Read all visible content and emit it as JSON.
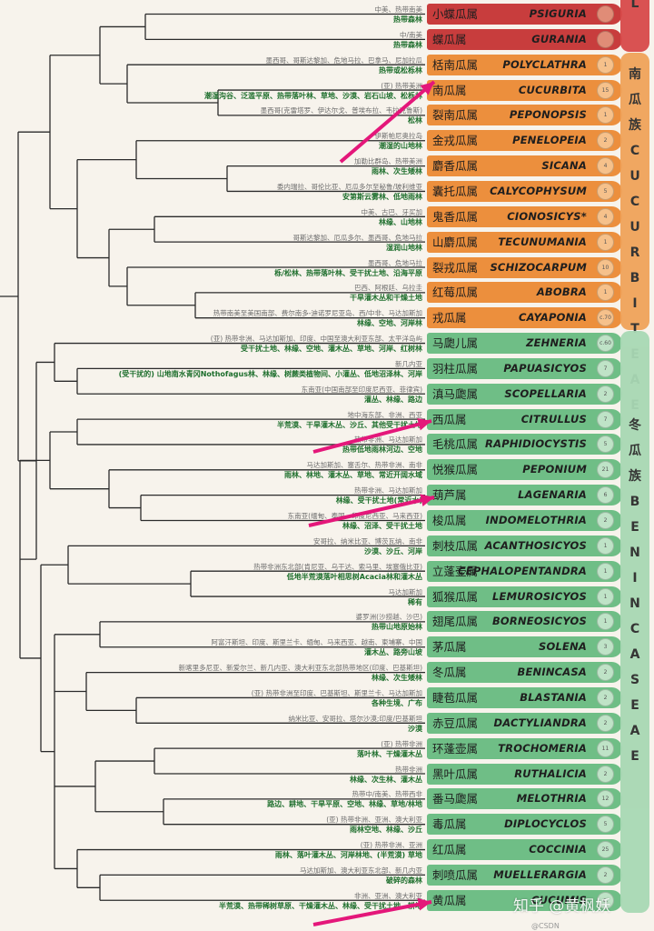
{
  "rows": [
    {
      "cn": "小蝶瓜属",
      "lat": "Psiguria",
      "count": "",
      "tribe": "red",
      "l1": "中美、热带南美",
      "l2": "热带森林"
    },
    {
      "cn": "蝶瓜属",
      "lat": "Gurania",
      "count": "",
      "tribe": "red",
      "l1": "中/南美",
      "l2": "热带森林"
    },
    {
      "cn": "栝南瓜属",
      "lat": "Polyclathra",
      "count": "1",
      "tribe": "orange",
      "l1": "墨西哥、哥斯达黎加、危地马拉、巴拿马、尼加拉瓜",
      "l2": "热带或松栎林"
    },
    {
      "cn": "南瓜属",
      "lat": "Cucurbita",
      "count": "15",
      "tribe": "orange",
      "l1": "(亚) 热带美洲",
      "l2": "潮湿沟谷、泛滥平原、热带落叶林、草地、沙漠、岩石山坡、松栎林"
    },
    {
      "cn": "裂南瓜属",
      "lat": "Peponopsis",
      "count": "1",
      "tribe": "orange",
      "l1": "墨西哥(克雷塔罗、伊达尔戈、普埃布拉、韦拉克鲁斯)",
      "l2": "松林"
    },
    {
      "cn": "金戎瓜属",
      "lat": "Penelopeia",
      "count": "2",
      "tribe": "orange",
      "l1": "伊斯帕尼奥拉岛",
      "l2": "潮湿的山地林"
    },
    {
      "cn": "麝香瓜属",
      "lat": "Sicana",
      "count": "4",
      "tribe": "orange",
      "l1": "加勒比群岛、热带美洲",
      "l2": "雨林、次生矮林"
    },
    {
      "cn": "囊托瓜属",
      "lat": "Calycophysum",
      "count": "5",
      "tribe": "orange",
      "l1": "委内瑞拉、哥伦比亚、厄瓜多尔至秘鲁/玻利维亚",
      "l2": "安第斯云雾林、低地雨林"
    },
    {
      "cn": "鬼香瓜属",
      "lat": "Cionosicys*",
      "count": "4",
      "tribe": "orange",
      "l1": "中美、古巴、牙买加",
      "l2": "林缘、山地林"
    },
    {
      "cn": "山麝瓜属",
      "lat": "Tecunumania",
      "count": "1",
      "tribe": "orange",
      "l1": "哥斯达黎加、厄瓜多尔、墨西哥、危地马拉",
      "l2": "湿润山地林"
    },
    {
      "cn": "裂戎瓜属",
      "lat": "Schizocarpum",
      "count": "10",
      "tribe": "orange",
      "l1": "墨西哥、危地马拉",
      "l2": "栎/松林、热带落叶林、受干扰土地、沿海平原"
    },
    {
      "cn": "红莓瓜属",
      "lat": "Abobra",
      "count": "1",
      "tribe": "orange",
      "l1": "巴西、阿根廷、乌拉圭",
      "l2": "干旱灌木丛和干燥土地"
    },
    {
      "cn": "戎瓜属",
      "lat": "Cayaponia",
      "count": "c.70",
      "tribe": "orange",
      "l1": "热带南美至美国南部、费尔南多-迪诺罗尼亚岛、西/中非、马达加斯加",
      "l2": "林缘、空地、河岸林"
    },
    {
      "cn": "马瓟儿属",
      "lat": "Zehneria",
      "count": "c.60",
      "tribe": "green",
      "l1": "(亚) 热带非洲、马达加斯加、印度、中国至澳大利亚东部、太平洋岛屿",
      "l2": "受干扰土地、林缘、空地、灌木丛、草地、河岸、红树林"
    },
    {
      "cn": "羽柱瓜属",
      "lat": "Papuasicyos",
      "count": "7",
      "tribe": "green",
      "l1": "新几内亚",
      "l2": "(受干扰的) 山地南水青冈Nothofagus林、林缘、树蕨类植物间、小灌丛、低地沼泽林、河岸"
    },
    {
      "cn": "滇马瓟属",
      "lat": "Scopellaria",
      "count": "2",
      "tribe": "green",
      "l1": "东南亚(中国南部至印度尼西亚、菲律宾)",
      "l2": "灌丛、林缘、路边"
    },
    {
      "cn": "西瓜属",
      "lat": "Citrullus",
      "count": "7",
      "tribe": "green",
      "l1": "地中海东部、非洲、西亚",
      "l2": "半荒漠、干旱灌木丛、沙丘、其他受干扰土地"
    },
    {
      "cn": "毛桃瓜属",
      "lat": "Raphidiocystis",
      "count": "5",
      "tribe": "green",
      "l1": "热带非洲、马达加斯加",
      "l2": "热带低地雨林河边、空地"
    },
    {
      "cn": "悦猴瓜属",
      "lat": "Peponium",
      "count": "21",
      "tribe": "green",
      "l1": "马达加斯加、塞舌尔、热带非洲、南非",
      "l2": "雨林、林地、灌木丛、草地、常近开阔水域"
    },
    {
      "cn": "葫芦属",
      "lat": "Lagenaria",
      "count": "6",
      "tribe": "green",
      "l1": "热带非洲、马达加斯加",
      "l2": "林缘、受干扰土地(常近水)"
    },
    {
      "cn": "梭瓜属",
      "lat": "Indomelothria",
      "count": "2",
      "tribe": "green",
      "l1": "东南亚(缅甸、泰国、印度尼西亚、马来西亚)",
      "l2": "林缘、沼泽、受干扰土地"
    },
    {
      "cn": "刺枝瓜属",
      "lat": "Acanthosicyos",
      "count": "1",
      "tribe": "green",
      "l1": "安哥拉、纳米比亚、博茨瓦纳、南非",
      "l2": "沙漠、沙丘、河岸"
    },
    {
      "cn": "立蓬壶属",
      "lat": "Cephalopentandra",
      "count": "1",
      "tribe": "green",
      "l1": "热带非洲东北部(肯尼亚、乌干达、索马里、埃塞俄比亚)",
      "l2": "低地半荒漠落叶相思树Acacia林和灌木丛"
    },
    {
      "cn": "狐猴瓜属",
      "lat": "Lemurosicyos",
      "count": "1",
      "tribe": "green",
      "l1": "马达加斯加",
      "l2": "稀有"
    },
    {
      "cn": "翅尾瓜属",
      "lat": "Borneosicyos",
      "count": "1",
      "tribe": "green",
      "l1": "婆罗洲(沙捞越、沙巴)",
      "l2": "热带山地原始林"
    },
    {
      "cn": "茅瓜属",
      "lat": "Solena",
      "count": "3",
      "tribe": "green",
      "l1": "阿富汗斯坦、印度、斯里兰卡、缅甸、马来西亚、越南、柬埔寨、中国",
      "l2": "灌木丛、路旁山坡"
    },
    {
      "cn": "冬瓜属",
      "lat": "Benincasa",
      "count": "2",
      "tribe": "green",
      "l1": "新喀里多尼亚、新爱尔兰、新几内亚、澳大利亚东北部热带地区(印度、巴基斯坦)",
      "l2": "林缘、次生矮林"
    },
    {
      "cn": "睫苞瓜属",
      "lat": "Blastania",
      "count": "2",
      "tribe": "green",
      "l1": "(亚) 热带非洲至印度、巴基斯坦、斯里兰卡、马达加斯加",
      "l2": "各种生境、广布"
    },
    {
      "cn": "赤豆瓜属",
      "lat": "Dactyliandra",
      "count": "2",
      "tribe": "green",
      "l1": "纳米比亚、安哥拉、塔尔沙漠;印度/巴基斯坦",
      "l2": "沙漠"
    },
    {
      "cn": "环蓬壶属",
      "lat": "Trochomeria",
      "count": "11",
      "tribe": "green",
      "l1": "(亚) 热带非洲",
      "l2": "落叶林、干燥灌木丛"
    },
    {
      "cn": "黑叶瓜属",
      "lat": "Ruthalicia",
      "count": "2",
      "tribe": "green",
      "l1": "热带非洲",
      "l2": "林缘、次生林、灌木丛"
    },
    {
      "cn": "番马瓟属",
      "lat": "Melothria",
      "count": "12",
      "tribe": "green",
      "l1": "热带中/南美、热带西非",
      "l2": "路边、耕地、干旱平原、空地、林缘、草地/林地"
    },
    {
      "cn": "毒瓜属",
      "lat": "Diplocyclos",
      "count": "5",
      "tribe": "green",
      "l1": "(亚) 热带非洲、亚洲、澳大利亚",
      "l2": "雨林空地、林缘、沙丘"
    },
    {
      "cn": "红瓜属",
      "lat": "Coccinia",
      "count": "25",
      "tribe": "green",
      "l1": "(亚) 热带非洲、亚洲",
      "l2": "雨林、落叶灌木丛、河岸林地、(半荒漠) 草地"
    },
    {
      "cn": "刺喷瓜属",
      "lat": "Muellerargia",
      "count": "2",
      "tribe": "green",
      "l1": "马达加斯加、澳大利亚东北部、新几内亚",
      "l2": "破碎的森林"
    },
    {
      "cn": "黄瓜属",
      "lat": "Cucumis",
      "count": "c.",
      "tribe": "green",
      "l1": "非洲、亚洲、澳大利亚",
      "l2": "半荒漠、热带稀树草原、干燥灌木丛、林缘、受干扰土地、耕地"
    }
  ],
  "tribes": {
    "red": {
      "label": "L",
      "color": "#d84a4a"
    },
    "orange": {
      "label": "南瓜族CUCURBITEAE",
      "color": "#f0a35a"
    },
    "green": {
      "label": "冬瓜族BENINCASEAE",
      "color": "#a8d8b4"
    }
  },
  "colors": {
    "red_row": "#c83d3d",
    "orange_row": "#ec8f3d",
    "green_row": "#6fbe86",
    "tree": "#2b2b2b",
    "arrow": "#e4177a"
  },
  "watermark": "知乎 @黄枫妖",
  "watermark_sub": "@CSDN"
}
